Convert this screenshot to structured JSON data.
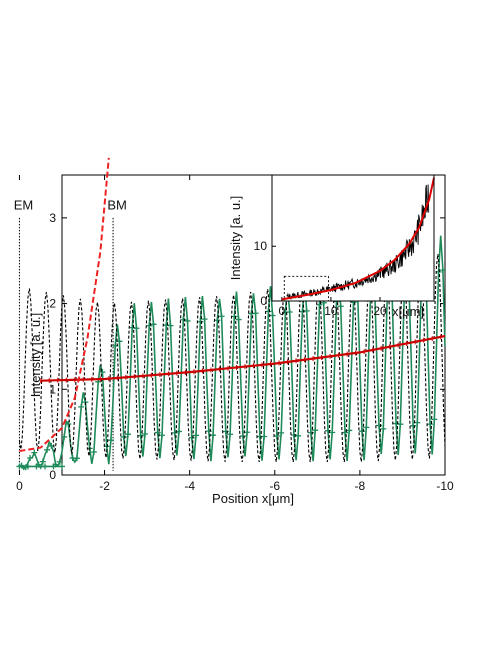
{
  "chart_data": [
    {
      "type": "line",
      "title": "",
      "xlabel": "Position x[μm]",
      "ylabel": "Intensity [a. u.]",
      "xlim": [
        -1,
        -10
      ],
      "ylim": [
        0,
        3.5
      ],
      "x_ticks": [
        0,
        -2,
        -4,
        -6,
        -8,
        -10
      ],
      "x_tick_labels": [
        "0",
        "-2",
        "-4",
        "-6",
        "-8",
        "-10"
      ],
      "y_ticks": [
        0,
        1,
        2,
        3
      ],
      "y_tick_labels": [
        "0",
        "1",
        "2",
        "3"
      ],
      "grid": false,
      "annotations": [
        {
          "text": "EM",
          "x": 0
        },
        {
          "text": "BM",
          "x": -2.2
        }
      ],
      "series": [
        {
          "style": "black dashed oscillation",
          "color": "#000000",
          "period": 0.4,
          "start_x": 0,
          "envelope": {
            "x": [
              0,
              -2,
              -5,
              -8,
              -10
            ],
            "peak": [
              2.2,
              2.0,
              2.1,
              2.35,
              2.6
            ],
            "trough": [
              0.3,
              0.2,
              0.15,
              0.15,
              0.2
            ]
          }
        },
        {
          "style": "green line with plus markers",
          "color": "#1f8a5a",
          "period": 0.4,
          "flat_level": 0.1,
          "envelope": {
            "x": [
              0,
              -1,
              -2,
              -2.5,
              -5,
              -8,
              -10
            ],
            "peak": [
              0.12,
              0.5,
              1.4,
              2.0,
              2.1,
              2.35,
              2.8
            ],
            "trough": [
              0.1,
              0.1,
              0.15,
              0.2,
              0.2,
              0.2,
              0.25
            ]
          }
        },
        {
          "style": "red solid fit",
          "color": "#cc0000",
          "x": [
            -0.5,
            -2,
            -4,
            -6,
            -8,
            -10
          ],
          "y": [
            1.1,
            1.12,
            1.2,
            1.3,
            1.43,
            1.62
          ]
        },
        {
          "style": "red dashed exponential",
          "color": "#ee2222",
          "x": [
            0,
            -0.5,
            -1,
            -1.3,
            -1.6,
            -1.9,
            -2.1
          ],
          "y": [
            0.28,
            0.32,
            0.55,
            0.9,
            1.6,
            2.6,
            3.7
          ]
        }
      ]
    },
    {
      "type": "line",
      "inset": true,
      "title": "",
      "xlabel": "x[μm]",
      "ylabel": "Intensity [a. u.]",
      "xlim": [
        -2,
        31
      ],
      "ylim": [
        0,
        23
      ],
      "x_ticks": [
        0,
        10,
        20
      ],
      "x_tick_labels": [
        "0",
        "10",
        "20"
      ],
      "y_ticks": [
        0,
        10
      ],
      "y_tick_labels": [
        "0",
        "10"
      ],
      "series": [
        {
          "style": "black noisy",
          "color": "#000000",
          "x": [
            1,
            5,
            10,
            15,
            20,
            23,
            25,
            27,
            29,
            30
          ],
          "y": [
            0.8,
            1.3,
            2.2,
            3.3,
            5.0,
            6.5,
            8.5,
            11,
            16,
            20
          ]
        },
        {
          "style": "red exponential fit",
          "color": "#dd0000",
          "x": [
            0,
            5,
            10,
            15,
            20,
            23,
            26,
            28,
            30,
            31
          ],
          "y": [
            0.3,
            1.1,
            2.0,
            3.3,
            5.5,
            7.5,
            10.5,
            13.5,
            18.5,
            22.5
          ]
        }
      ],
      "zoom_box": {
        "x": [
          0.5,
          9.5
        ],
        "y": [
          0,
          4.5
        ]
      }
    }
  ]
}
